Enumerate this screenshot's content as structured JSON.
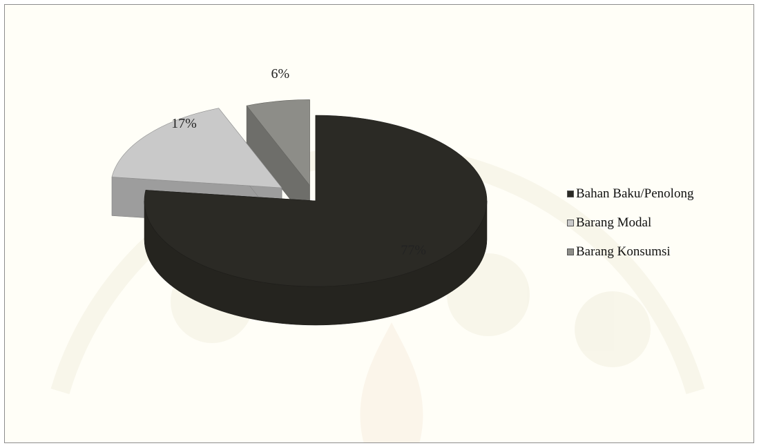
{
  "chart_data": {
    "type": "pie",
    "style": "3d-exploded",
    "categories": [
      "Bahan Baku/Penolong",
      "Barang Modal",
      "Barang Konsumsi"
    ],
    "values": [
      77,
      17,
      6
    ],
    "data_labels": [
      "77%",
      "17%",
      "6%"
    ],
    "legend_position": "right",
    "colors": {
      "Bahan Baku/Penolong": "#2b2a25",
      "Barang Modal": "#c9c9c9",
      "Barang Konsumsi": "#8d8d88"
    }
  }
}
